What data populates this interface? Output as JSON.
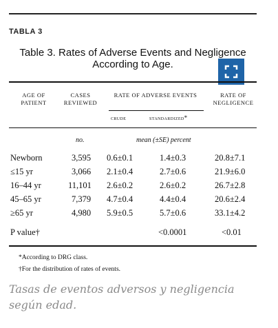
{
  "label": "TABLA 3",
  "table_title": "Table 3. Rates of Adverse Events and Negligence According to Age.",
  "headers": {
    "age": "Age of Patient",
    "cases": "Cases Reviewed",
    "rate_ae": "Rate of Adverse Events",
    "rate_neg": "Rate of Negligence",
    "crude": "crude",
    "standardized": "standardized*"
  },
  "units": {
    "cases": "no.",
    "rates": "mean (±SE) percent"
  },
  "rows": [
    {
      "age": "Newborn",
      "cases": "3,595",
      "crude": "0.6±0.1",
      "std": "1.4±0.3",
      "neg": "20.8±7.1"
    },
    {
      "age": "≤15 yr",
      "cases": "3,066",
      "crude": "2.1±0.4",
      "std": "2.7±0.6",
      "neg": "21.9±6.0"
    },
    {
      "age": "16–44 yr",
      "cases": "11,101",
      "crude": "2.6±0.2",
      "std": "2.6±0.2",
      "neg": "26.7±2.8"
    },
    {
      "age": "45–65 yr",
      "cases": "7,379",
      "crude": "4.7±0.4",
      "std": "4.4±0.4",
      "neg": "20.6±2.4"
    },
    {
      "age": "≥65 yr",
      "cases": "4,980",
      "crude": "5.9±0.5",
      "std": "5.7±0.6",
      "neg": "33.1±4.2"
    }
  ],
  "pvalue": {
    "label": "P value†",
    "std": "<0.0001",
    "neg": "<0.01"
  },
  "footnotes": [
    "*According to DRG class.",
    "†For the distribution of rates of events."
  ],
  "caption": "Tasas de eventos adversos y negligencia según edad.",
  "expand_icon": "expand-icon",
  "accent": "#1f64a8"
}
